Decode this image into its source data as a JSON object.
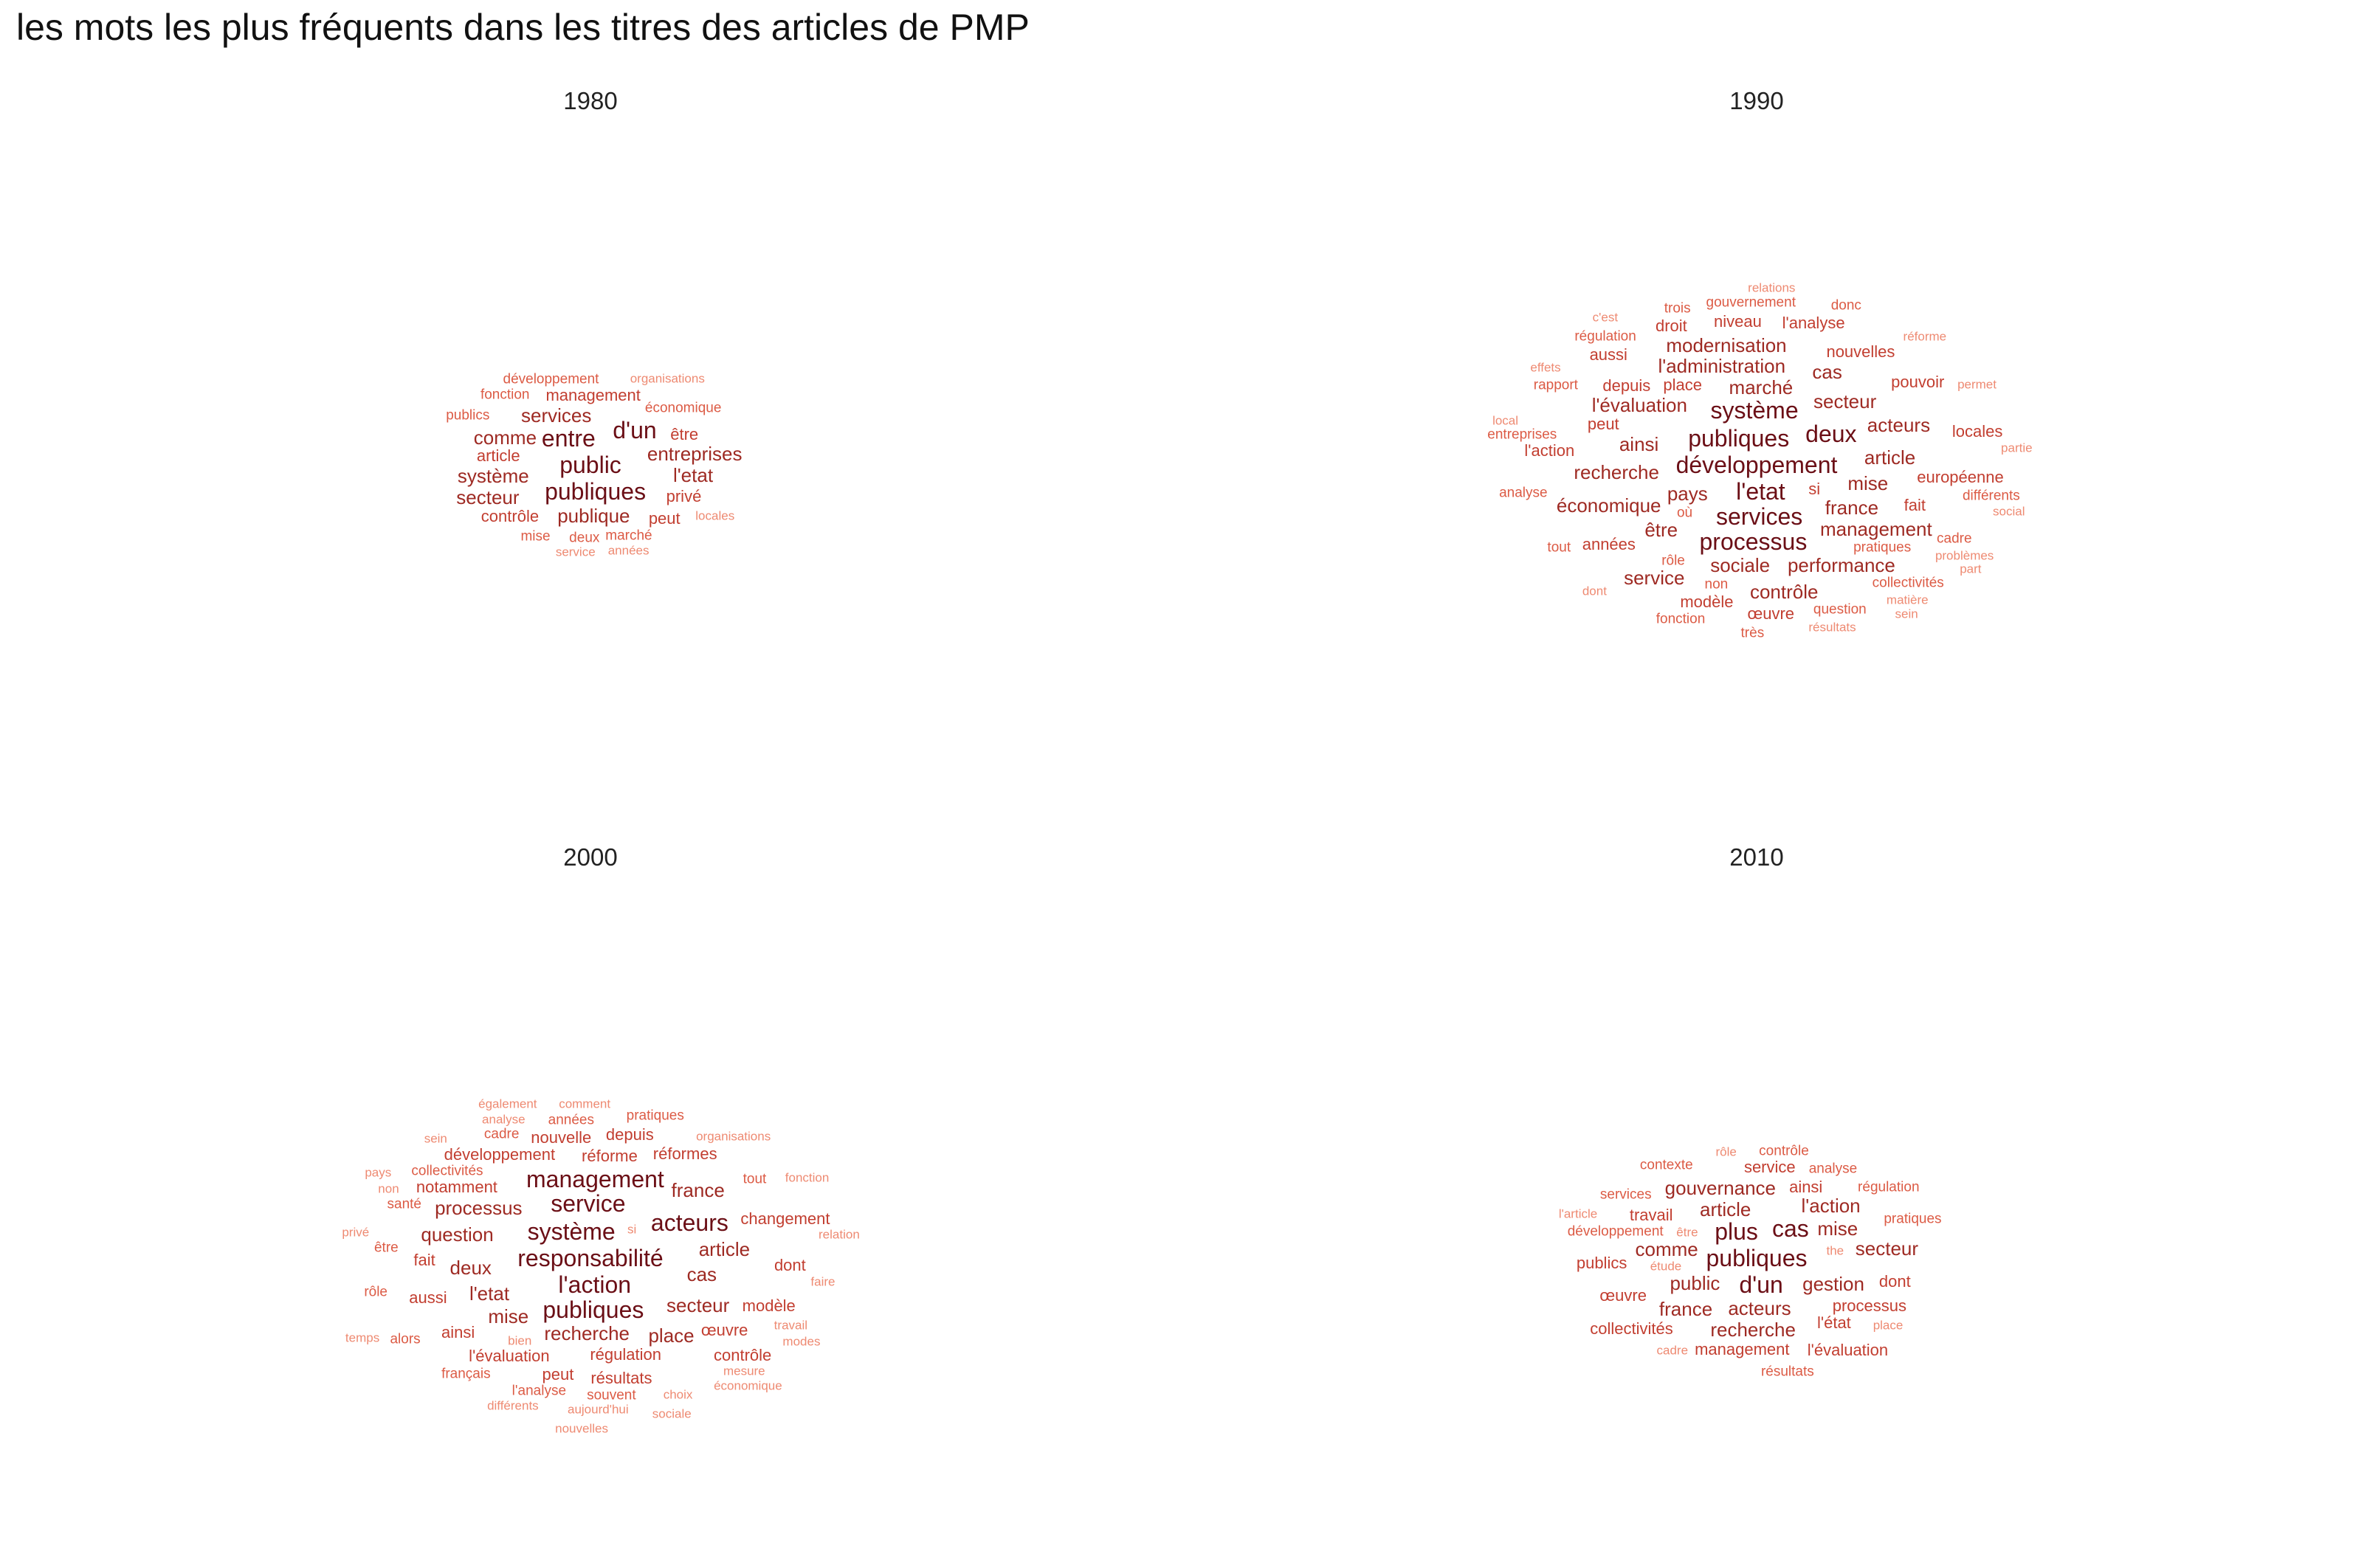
{
  "title": "les mots les plus fréquents dans les titres des articles de PMP",
  "chart_data": [
    {
      "type": "wordcloud",
      "panel": "1980",
      "words": [
        {
          "t": "public",
          "s": 5
        },
        {
          "t": "publiques",
          "s": 5
        },
        {
          "t": "entre",
          "s": 5
        },
        {
          "t": "d'un",
          "s": 5
        },
        {
          "t": "publique",
          "s": 4
        },
        {
          "t": "services",
          "s": 4
        },
        {
          "t": "entreprises",
          "s": 4
        },
        {
          "t": "système",
          "s": 4
        },
        {
          "t": "l'etat",
          "s": 4
        },
        {
          "t": "comme",
          "s": 4
        },
        {
          "t": "secteur",
          "s": 4
        },
        {
          "t": "management",
          "s": 3
        },
        {
          "t": "article",
          "s": 3
        },
        {
          "t": "être",
          "s": 3
        },
        {
          "t": "privé",
          "s": 3
        },
        {
          "t": "peut",
          "s": 3
        },
        {
          "t": "contrôle",
          "s": 3
        },
        {
          "t": "marché",
          "s": 2
        },
        {
          "t": "locales",
          "s": 1
        },
        {
          "t": "économique",
          "s": 2
        },
        {
          "t": "années",
          "s": 1
        },
        {
          "t": "deux",
          "s": 2
        },
        {
          "t": "développement",
          "s": 2
        },
        {
          "t": "service",
          "s": 1
        },
        {
          "t": "mise",
          "s": 2
        },
        {
          "t": "publics",
          "s": 2
        },
        {
          "t": "fonction",
          "s": 2
        },
        {
          "t": "organisations",
          "s": 1
        }
      ]
    },
    {
      "type": "wordcloud",
      "panel": "1990",
      "words": [
        {
          "t": "développement",
          "s": 5
        },
        {
          "t": "l'etat",
          "s": 5
        },
        {
          "t": "publiques",
          "s": 5
        },
        {
          "t": "services",
          "s": 5
        },
        {
          "t": "système",
          "s": 5
        },
        {
          "t": "processus",
          "s": 5
        },
        {
          "t": "deux",
          "s": 5
        },
        {
          "t": "pays",
          "s": 4
        },
        {
          "t": "marché",
          "s": 4
        },
        {
          "t": "france",
          "s": 4
        },
        {
          "t": "l'évaluation",
          "s": 4
        },
        {
          "t": "l'administration",
          "s": 4
        },
        {
          "t": "secteur",
          "s": 4
        },
        {
          "t": "recherche",
          "s": 4
        },
        {
          "t": "ainsi",
          "s": 4
        },
        {
          "t": "article",
          "s": 4
        },
        {
          "t": "mise",
          "s": 4
        },
        {
          "t": "sociale",
          "s": 4
        },
        {
          "t": "management",
          "s": 4
        },
        {
          "t": "être",
          "s": 4
        },
        {
          "t": "modernisation",
          "s": 4
        },
        {
          "t": "performance",
          "s": 4
        },
        {
          "t": "économique",
          "s": 4
        },
        {
          "t": "acteurs",
          "s": 4
        },
        {
          "t": "contrôle",
          "s": 4
        },
        {
          "t": "cas",
          "s": 4
        },
        {
          "t": "service",
          "s": 4
        },
        {
          "t": "fait",
          "s": 3
        },
        {
          "t": "place",
          "s": 3
        },
        {
          "t": "depuis",
          "s": 3
        },
        {
          "t": "nouvelles",
          "s": 3
        },
        {
          "t": "années",
          "s": 3
        },
        {
          "t": "pouvoir",
          "s": 3
        },
        {
          "t": "modèle",
          "s": 3
        },
        {
          "t": "niveau",
          "s": 3
        },
        {
          "t": "si",
          "s": 3
        },
        {
          "t": "peut",
          "s": 3
        },
        {
          "t": "européenne",
          "s": 3
        },
        {
          "t": "l'action",
          "s": 3
        },
        {
          "t": "collectivités",
          "s": 2
        },
        {
          "t": "gouvernement",
          "s": 2
        },
        {
          "t": "l'analyse",
          "s": 3
        },
        {
          "t": "œuvre",
          "s": 3
        },
        {
          "t": "aussi",
          "s": 3
        },
        {
          "t": "droit",
          "s": 3
        },
        {
          "t": "locales",
          "s": 3
        },
        {
          "t": "cadre",
          "s": 2
        },
        {
          "t": "rôle",
          "s": 2
        },
        {
          "t": "question",
          "s": 2
        },
        {
          "t": "fonction",
          "s": 2
        },
        {
          "t": "problèmes",
          "s": 1
        },
        {
          "t": "matière",
          "s": 1
        },
        {
          "t": "non",
          "s": 2
        },
        {
          "t": "résultats",
          "s": 1
        },
        {
          "t": "réforme",
          "s": 1
        },
        {
          "t": "permet",
          "s": 1
        },
        {
          "t": "dont",
          "s": 1
        },
        {
          "t": "effets",
          "s": 1
        },
        {
          "t": "relations",
          "s": 1
        },
        {
          "t": "local",
          "s": 1
        },
        {
          "t": "c'est",
          "s": 1
        },
        {
          "t": "partie",
          "s": 1
        },
        {
          "t": "social",
          "s": 1
        },
        {
          "t": "part",
          "s": 1
        },
        {
          "t": "pratiques",
          "s": 2
        },
        {
          "t": "tout",
          "s": 2
        },
        {
          "t": "rapport",
          "s": 2
        },
        {
          "t": "entreprises",
          "s": 2
        },
        {
          "t": "analyse",
          "s": 2
        },
        {
          "t": "régulation",
          "s": 2
        },
        {
          "t": "trois",
          "s": 2
        },
        {
          "t": "différents",
          "s": 2
        },
        {
          "t": "très",
          "s": 2
        },
        {
          "t": "donc",
          "s": 2
        },
        {
          "t": "où",
          "s": 2
        },
        {
          "t": "sein",
          "s": 1
        }
      ]
    },
    {
      "type": "wordcloud",
      "panel": "2000",
      "words": [
        {
          "t": "responsabilité",
          "s": 5
        },
        {
          "t": "l'action",
          "s": 5
        },
        {
          "t": "système",
          "s": 5
        },
        {
          "t": "publiques",
          "s": 5
        },
        {
          "t": "service",
          "s": 5
        },
        {
          "t": "acteurs",
          "s": 5
        },
        {
          "t": "management",
          "s": 5
        },
        {
          "t": "recherche",
          "s": 4
        },
        {
          "t": "l'etat",
          "s": 4
        },
        {
          "t": "processus",
          "s": 4
        },
        {
          "t": "secteur",
          "s": 4
        },
        {
          "t": "mise",
          "s": 4
        },
        {
          "t": "deux",
          "s": 4
        },
        {
          "t": "article",
          "s": 4
        },
        {
          "t": "cas",
          "s": 4
        },
        {
          "t": "question",
          "s": 4
        },
        {
          "t": "place",
          "s": 4
        },
        {
          "t": "france",
          "s": 4
        },
        {
          "t": "régulation",
          "s": 3
        },
        {
          "t": "réforme",
          "s": 3
        },
        {
          "t": "l'évaluation",
          "s": 3
        },
        {
          "t": "notamment",
          "s": 3
        },
        {
          "t": "développement",
          "s": 3
        },
        {
          "t": "résultats",
          "s": 3
        },
        {
          "t": "œuvre",
          "s": 3
        },
        {
          "t": "fait",
          "s": 3
        },
        {
          "t": "ainsi",
          "s": 3
        },
        {
          "t": "aussi",
          "s": 3
        },
        {
          "t": "nouvelle",
          "s": 3
        },
        {
          "t": "peut",
          "s": 3
        },
        {
          "t": "réformes",
          "s": 3
        },
        {
          "t": "changement",
          "s": 3
        },
        {
          "t": "depuis",
          "s": 3
        },
        {
          "t": "modèle",
          "s": 3
        },
        {
          "t": "contrôle",
          "s": 3
        },
        {
          "t": "collectivités",
          "s": 2
        },
        {
          "t": "santé",
          "s": 2
        },
        {
          "t": "souvent",
          "s": 2
        },
        {
          "t": "l'analyse",
          "s": 2
        },
        {
          "t": "dont",
          "s": 3
        },
        {
          "t": "tout",
          "s": 2
        },
        {
          "t": "années",
          "s": 2
        },
        {
          "t": "français",
          "s": 2
        },
        {
          "t": "cadre",
          "s": 2
        },
        {
          "t": "être",
          "s": 2
        },
        {
          "t": "alors",
          "s": 2
        },
        {
          "t": "pratiques",
          "s": 2
        },
        {
          "t": "rôle",
          "s": 2
        },
        {
          "t": "organisations",
          "s": 1
        },
        {
          "t": "travail",
          "s": 1
        },
        {
          "t": "choix",
          "s": 1
        },
        {
          "t": "non",
          "s": 1
        },
        {
          "t": "analyse",
          "s": 1
        },
        {
          "t": "bien",
          "s": 1
        },
        {
          "t": "mesure",
          "s": 1
        },
        {
          "t": "aujourd'hui",
          "s": 1
        },
        {
          "t": "comment",
          "s": 1
        },
        {
          "t": "faire",
          "s": 1
        },
        {
          "t": "différents",
          "s": 1
        },
        {
          "t": "privé",
          "s": 1
        },
        {
          "t": "sein",
          "s": 1
        },
        {
          "t": "également",
          "s": 1
        },
        {
          "t": "fonction",
          "s": 1
        },
        {
          "t": "économique",
          "s": 1
        },
        {
          "t": "sociale",
          "s": 1
        },
        {
          "t": "nouvelles",
          "s": 1
        },
        {
          "t": "modes",
          "s": 1
        },
        {
          "t": "temps",
          "s": 1
        },
        {
          "t": "pays",
          "s": 1
        },
        {
          "t": "relation",
          "s": 1
        },
        {
          "t": "si",
          "s": 1
        }
      ]
    },
    {
      "type": "wordcloud",
      "panel": "2010",
      "words": [
        {
          "t": "publiques",
          "s": 5
        },
        {
          "t": "d'un",
          "s": 5
        },
        {
          "t": "plus",
          "s": 5
        },
        {
          "t": "cas",
          "s": 5
        },
        {
          "t": "public",
          "s": 4
        },
        {
          "t": "acteurs",
          "s": 4
        },
        {
          "t": "article",
          "s": 4
        },
        {
          "t": "gestion",
          "s": 4
        },
        {
          "t": "comme",
          "s": 4
        },
        {
          "t": "mise",
          "s": 4
        },
        {
          "t": "france",
          "s": 4
        },
        {
          "t": "l'action",
          "s": 4
        },
        {
          "t": "recherche",
          "s": 4
        },
        {
          "t": "gouvernance",
          "s": 4
        },
        {
          "t": "secteur",
          "s": 4
        },
        {
          "t": "travail",
          "s": 3
        },
        {
          "t": "l'état",
          "s": 3
        },
        {
          "t": "service",
          "s": 3
        },
        {
          "t": "ainsi",
          "s": 3
        },
        {
          "t": "processus",
          "s": 3
        },
        {
          "t": "management",
          "s": 3
        },
        {
          "t": "collectivités",
          "s": 3
        },
        {
          "t": "dont",
          "s": 3
        },
        {
          "t": "œuvre",
          "s": 3
        },
        {
          "t": "l'évaluation",
          "s": 3
        },
        {
          "t": "publics",
          "s": 3
        },
        {
          "t": "services",
          "s": 2
        },
        {
          "t": "pratiques",
          "s": 2
        },
        {
          "t": "contexte",
          "s": 2
        },
        {
          "t": "contrôle",
          "s": 2
        },
        {
          "t": "régulation",
          "s": 2
        },
        {
          "t": "analyse",
          "s": 2
        },
        {
          "t": "développement",
          "s": 2
        },
        {
          "t": "résultats",
          "s": 2
        },
        {
          "t": "étude",
          "s": 1
        },
        {
          "t": "être",
          "s": 1
        },
        {
          "t": "place",
          "s": 1
        },
        {
          "t": "cadre",
          "s": 1
        },
        {
          "t": "rôle",
          "s": 1
        },
        {
          "t": "l'article",
          "s": 1
        },
        {
          "t": "the",
          "s": 1
        }
      ]
    }
  ],
  "colors": {
    "tier5": "#6b0f16",
    "tier4": "#9e2a23",
    "tier3": "#c23e30",
    "tier2": "#dc5b45",
    "tier1": "#ee8a72"
  }
}
